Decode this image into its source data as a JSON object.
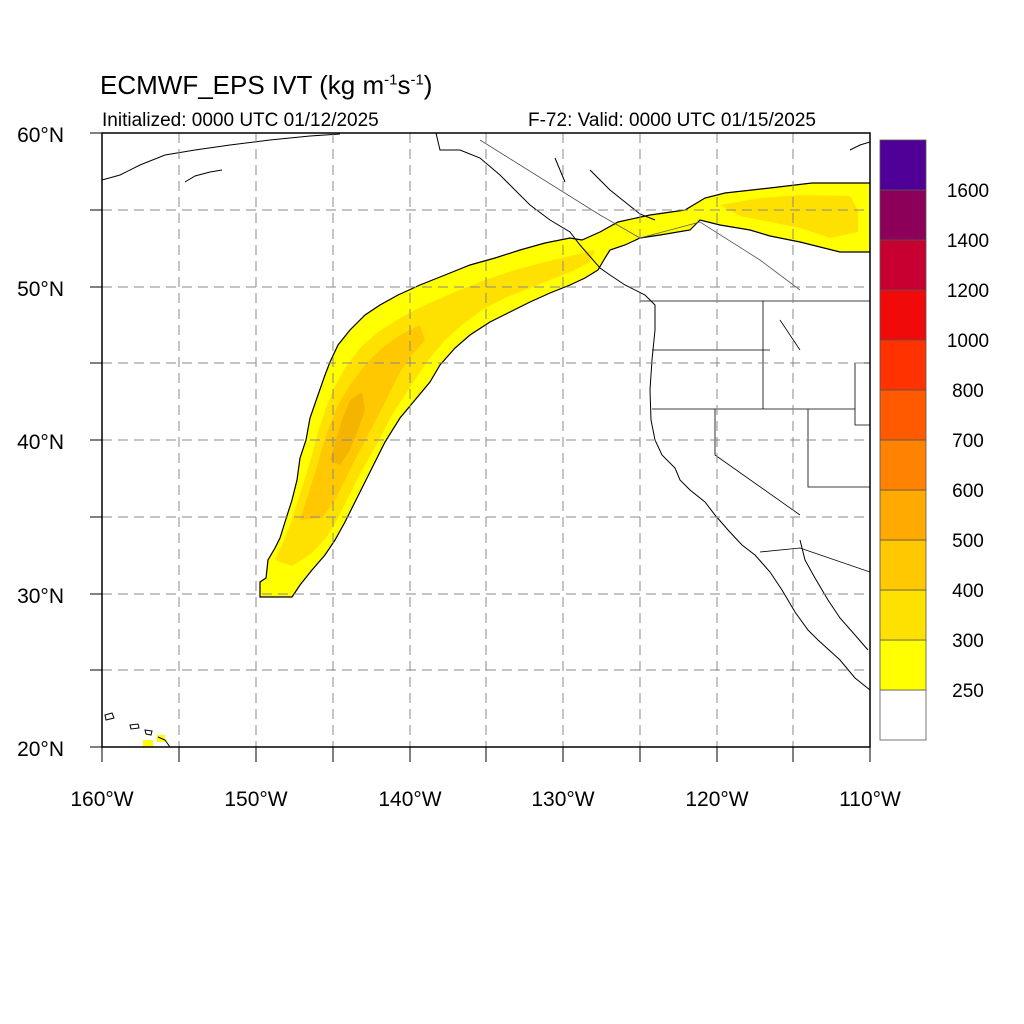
{
  "header": {
    "title_prefix": "ECMWF_EPS IVT (kg m",
    "title_exp1": "-1",
    "title_mid": "s",
    "title_exp2": "-1",
    "title_suffix": ")",
    "initialized": "Initialized: 0000 UTC 01/12/2025",
    "valid": "F-72: Valid: 0000 UTC 01/15/2025"
  },
  "map": {
    "projection": "cylindrical equidistant",
    "lon_range": [
      -160,
      -110
    ],
    "lat_range": [
      20,
      60
    ],
    "grid": "dashed",
    "lat_labels": [
      "20°N",
      "30°N",
      "40°N",
      "50°N",
      "60°N"
    ],
    "lon_labels": [
      "160°W",
      "150°W",
      "140°W",
      "130°W",
      "120°W",
      "110°W"
    ],
    "ivt_plume": {
      "description_levels": "250–500 kg m-1 s-1",
      "outer_color": "#ffff00",
      "core_colors": [
        "#ffe100",
        "#ffc800",
        "#f5b400"
      ]
    }
  },
  "colorbar": {
    "labels": [
      "250",
      "300",
      "400",
      "500",
      "600",
      "700",
      "800",
      "1000",
      "1200",
      "1400",
      "1600"
    ],
    "colors": [
      "#ffffff",
      "#ffff00",
      "#ffe100",
      "#ffc800",
      "#ffaa00",
      "#ff8200",
      "#ff5a00",
      "#ff3200",
      "#f00a0a",
      "#c80032",
      "#8c005a",
      "#500096"
    ]
  }
}
